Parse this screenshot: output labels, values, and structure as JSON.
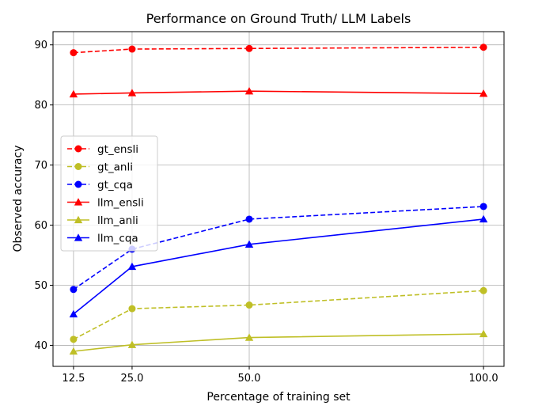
{
  "chart_data": {
    "type": "line",
    "title": "Performance on Ground Truth/ LLM Labels",
    "xlabel": "Percentage of training set",
    "ylabel": "Observed accuracy",
    "x": [
      12.5,
      25.0,
      50.0,
      100.0
    ],
    "xticks": [
      "12.5",
      "25.0",
      "50.0",
      "100.0"
    ],
    "yticks": [
      "40",
      "50",
      "60",
      "70",
      "80",
      "90"
    ],
    "xlim": [
      8.125,
      104.375
    ],
    "ylim": [
      36.5,
      92.2
    ],
    "grid": true,
    "legend_position": "center-left",
    "series": [
      {
        "name": "gt_ensli",
        "values": [
          88.7,
          89.3,
          89.4,
          89.6
        ],
        "color": "#ff0000",
        "dash": "dashed",
        "marker": "circle"
      },
      {
        "name": "gt_anli",
        "values": [
          41.0,
          46.1,
          46.7,
          49.1
        ],
        "color": "#bfbf26",
        "dash": "dashed",
        "marker": "circle"
      },
      {
        "name": "gt_cqa",
        "values": [
          49.3,
          56.0,
          61.0,
          63.1
        ],
        "color": "#0000ff",
        "dash": "dashed",
        "marker": "circle"
      },
      {
        "name": "llm_ensli",
        "values": [
          81.8,
          82.0,
          82.3,
          81.9
        ],
        "color": "#ff0000",
        "dash": "solid",
        "marker": "triangle"
      },
      {
        "name": "llm_anli",
        "values": [
          39.0,
          40.1,
          41.3,
          41.9
        ],
        "color": "#bfbf26",
        "dash": "solid",
        "marker": "triangle"
      },
      {
        "name": "llm_cqa",
        "values": [
          45.2,
          53.1,
          56.8,
          61.0
        ],
        "color": "#0000ff",
        "dash": "solid",
        "marker": "triangle"
      }
    ]
  }
}
